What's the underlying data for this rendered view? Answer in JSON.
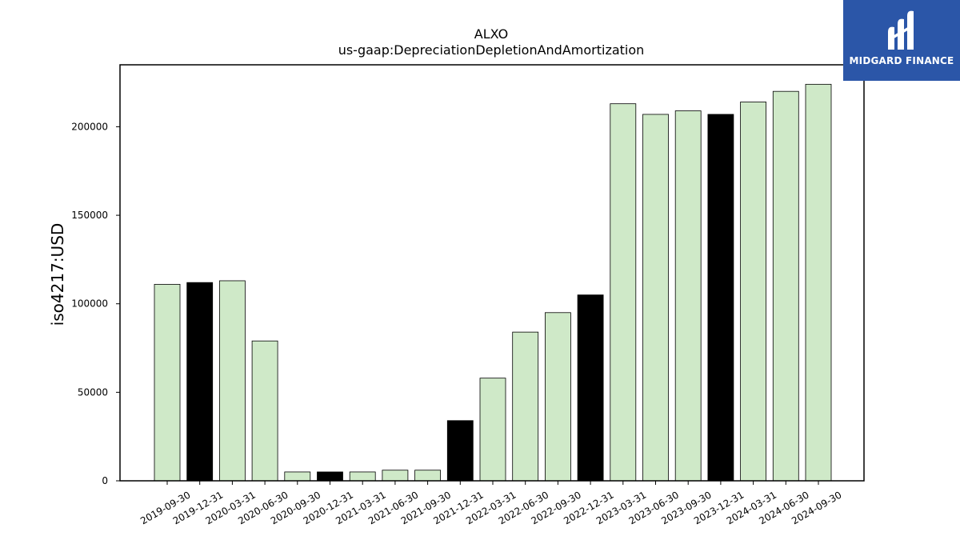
{
  "chart_data": {
    "type": "bar",
    "title": "ALXO",
    "subtitle": "us-gaap:DepreciationDepletionAndAmortization",
    "ylabel": "iso4217:USD",
    "xlabel": "",
    "ylim": [
      0,
      235000
    ],
    "yticks": [
      "0",
      "50000",
      "100000",
      "150000",
      "200000"
    ],
    "categories": [
      "2019-09-30",
      "2019-12-31",
      "2020-03-31",
      "2020-06-30",
      "2020-09-30",
      "2020-12-31",
      "2021-03-31",
      "2021-06-30",
      "2021-09-30",
      "2021-12-31",
      "2022-03-31",
      "2022-06-30",
      "2022-09-30",
      "2022-12-31",
      "2023-03-31",
      "2023-06-30",
      "2023-09-30",
      "2023-12-31",
      "2024-03-31",
      "2024-06-30",
      "2024-09-30"
    ],
    "values": [
      111000,
      112000,
      113000,
      79000,
      5000,
      5000,
      5000,
      6000,
      6000,
      34000,
      58000,
      84000,
      95000,
      105000,
      213000,
      207000,
      209000,
      207000,
      214000,
      220000,
      224000
    ],
    "highlighted": [
      false,
      true,
      false,
      false,
      false,
      true,
      false,
      false,
      false,
      true,
      false,
      false,
      false,
      true,
      false,
      false,
      false,
      true,
      false,
      false,
      false
    ],
    "colors": {
      "bar": "#cfe9c8",
      "highlight": "#000000",
      "edge": "#000000"
    },
    "grid": false,
    "legend": "none"
  },
  "logo": {
    "text": "MIDGARD FINANCE",
    "color": "#2b56a8"
  }
}
